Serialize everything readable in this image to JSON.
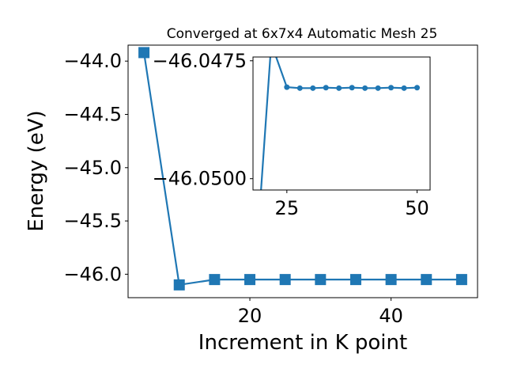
{
  "chart_data": [
    {
      "type": "line",
      "title": "Converged at 6x7x4 Automatic Mesh 25",
      "xlabel": "Increment in K point",
      "ylabel": "Energy (eV)",
      "xlim": [
        2.75,
        52.25
      ],
      "ylim": [
        -46.22,
        -43.85
      ],
      "grid": false,
      "x_ticks": [
        20,
        40
      ],
      "y_ticks": [
        -44.0,
        -44.5,
        -45.0,
        -45.5,
        -46.0
      ],
      "series": [
        {
          "marker": "square",
          "color": "#1f77b4",
          "x": [
            5,
            10,
            15,
            20,
            25,
            30,
            35,
            40,
            45,
            50
          ],
          "y": [
            -43.92,
            -46.1,
            -46.05,
            -46.05,
            -46.05,
            -46.05,
            -46.05,
            -46.05,
            -46.05,
            -46.05
          ]
        }
      ]
    },
    {
      "type": "line",
      "inset": true,
      "title": "",
      "xlabel": "",
      "ylabel": "",
      "xlim": [
        18.5,
        52.5
      ],
      "ylim": [
        -46.05024,
        -46.04742
      ],
      "grid": false,
      "x_ticks": [
        25,
        50
      ],
      "y_ticks": [
        -46.05,
        -46.0475
      ],
      "y_tick_labels": [
        "−46.0500",
        "−46.0475"
      ],
      "series": [
        {
          "marker": "circle",
          "color": "#1f77b4",
          "x": [
            20,
            22,
            25,
            27.5,
            30,
            32.5,
            35,
            37.5,
            40,
            42.5,
            45,
            47.5,
            50
          ],
          "y": [
            -46.0503,
            -46.04713,
            -46.04806,
            -46.04808,
            -46.04808,
            -46.04807,
            -46.04808,
            -46.04807,
            -46.04808,
            -46.04808,
            -46.04807,
            -46.04808,
            -46.04807
          ]
        }
      ]
    }
  ]
}
